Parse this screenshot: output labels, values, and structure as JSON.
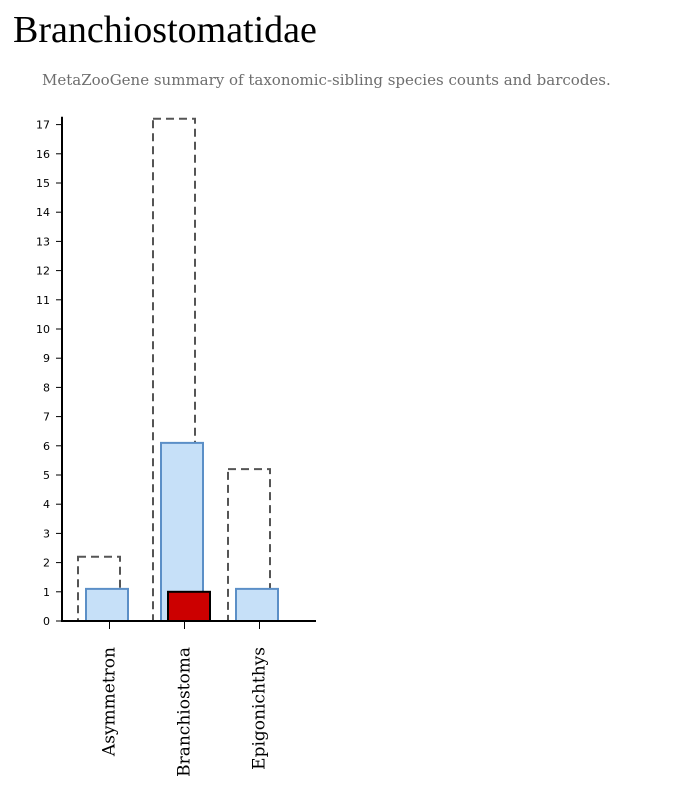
{
  "page": {
    "title": "Branchiostomatidae",
    "subtitle": "MetaZooGene summary of taxonomic-sibling species counts and barcodes."
  },
  "colors": {
    "outline_dash": "#555555",
    "fill_blue": "#c6e0f8",
    "stroke_blue": "#5b8fc7",
    "fill_red": "#cc0000",
    "stroke_red": "#000000",
    "axis": "#000000"
  },
  "chart_data": {
    "type": "bar",
    "categories": [
      "Asymmetron",
      "Branchiostoma",
      "Epigonichthys"
    ],
    "series": [
      {
        "style": "dashed-outline",
        "values": [
          2.2,
          17.2,
          5.2
        ]
      },
      {
        "style": "blue",
        "values": [
          1.1,
          6.1,
          1.1
        ]
      },
      {
        "style": "red",
        "values": [
          0,
          1,
          0
        ]
      }
    ],
    "ylim": [
      0,
      17.2
    ],
    "yticks": [
      0,
      1,
      2,
      3,
      4,
      5,
      6,
      7,
      8,
      9,
      10,
      11,
      12,
      13,
      14,
      15,
      16,
      17
    ],
    "xlabel": "",
    "ylabel": "",
    "grid": false,
    "legend": "none"
  }
}
